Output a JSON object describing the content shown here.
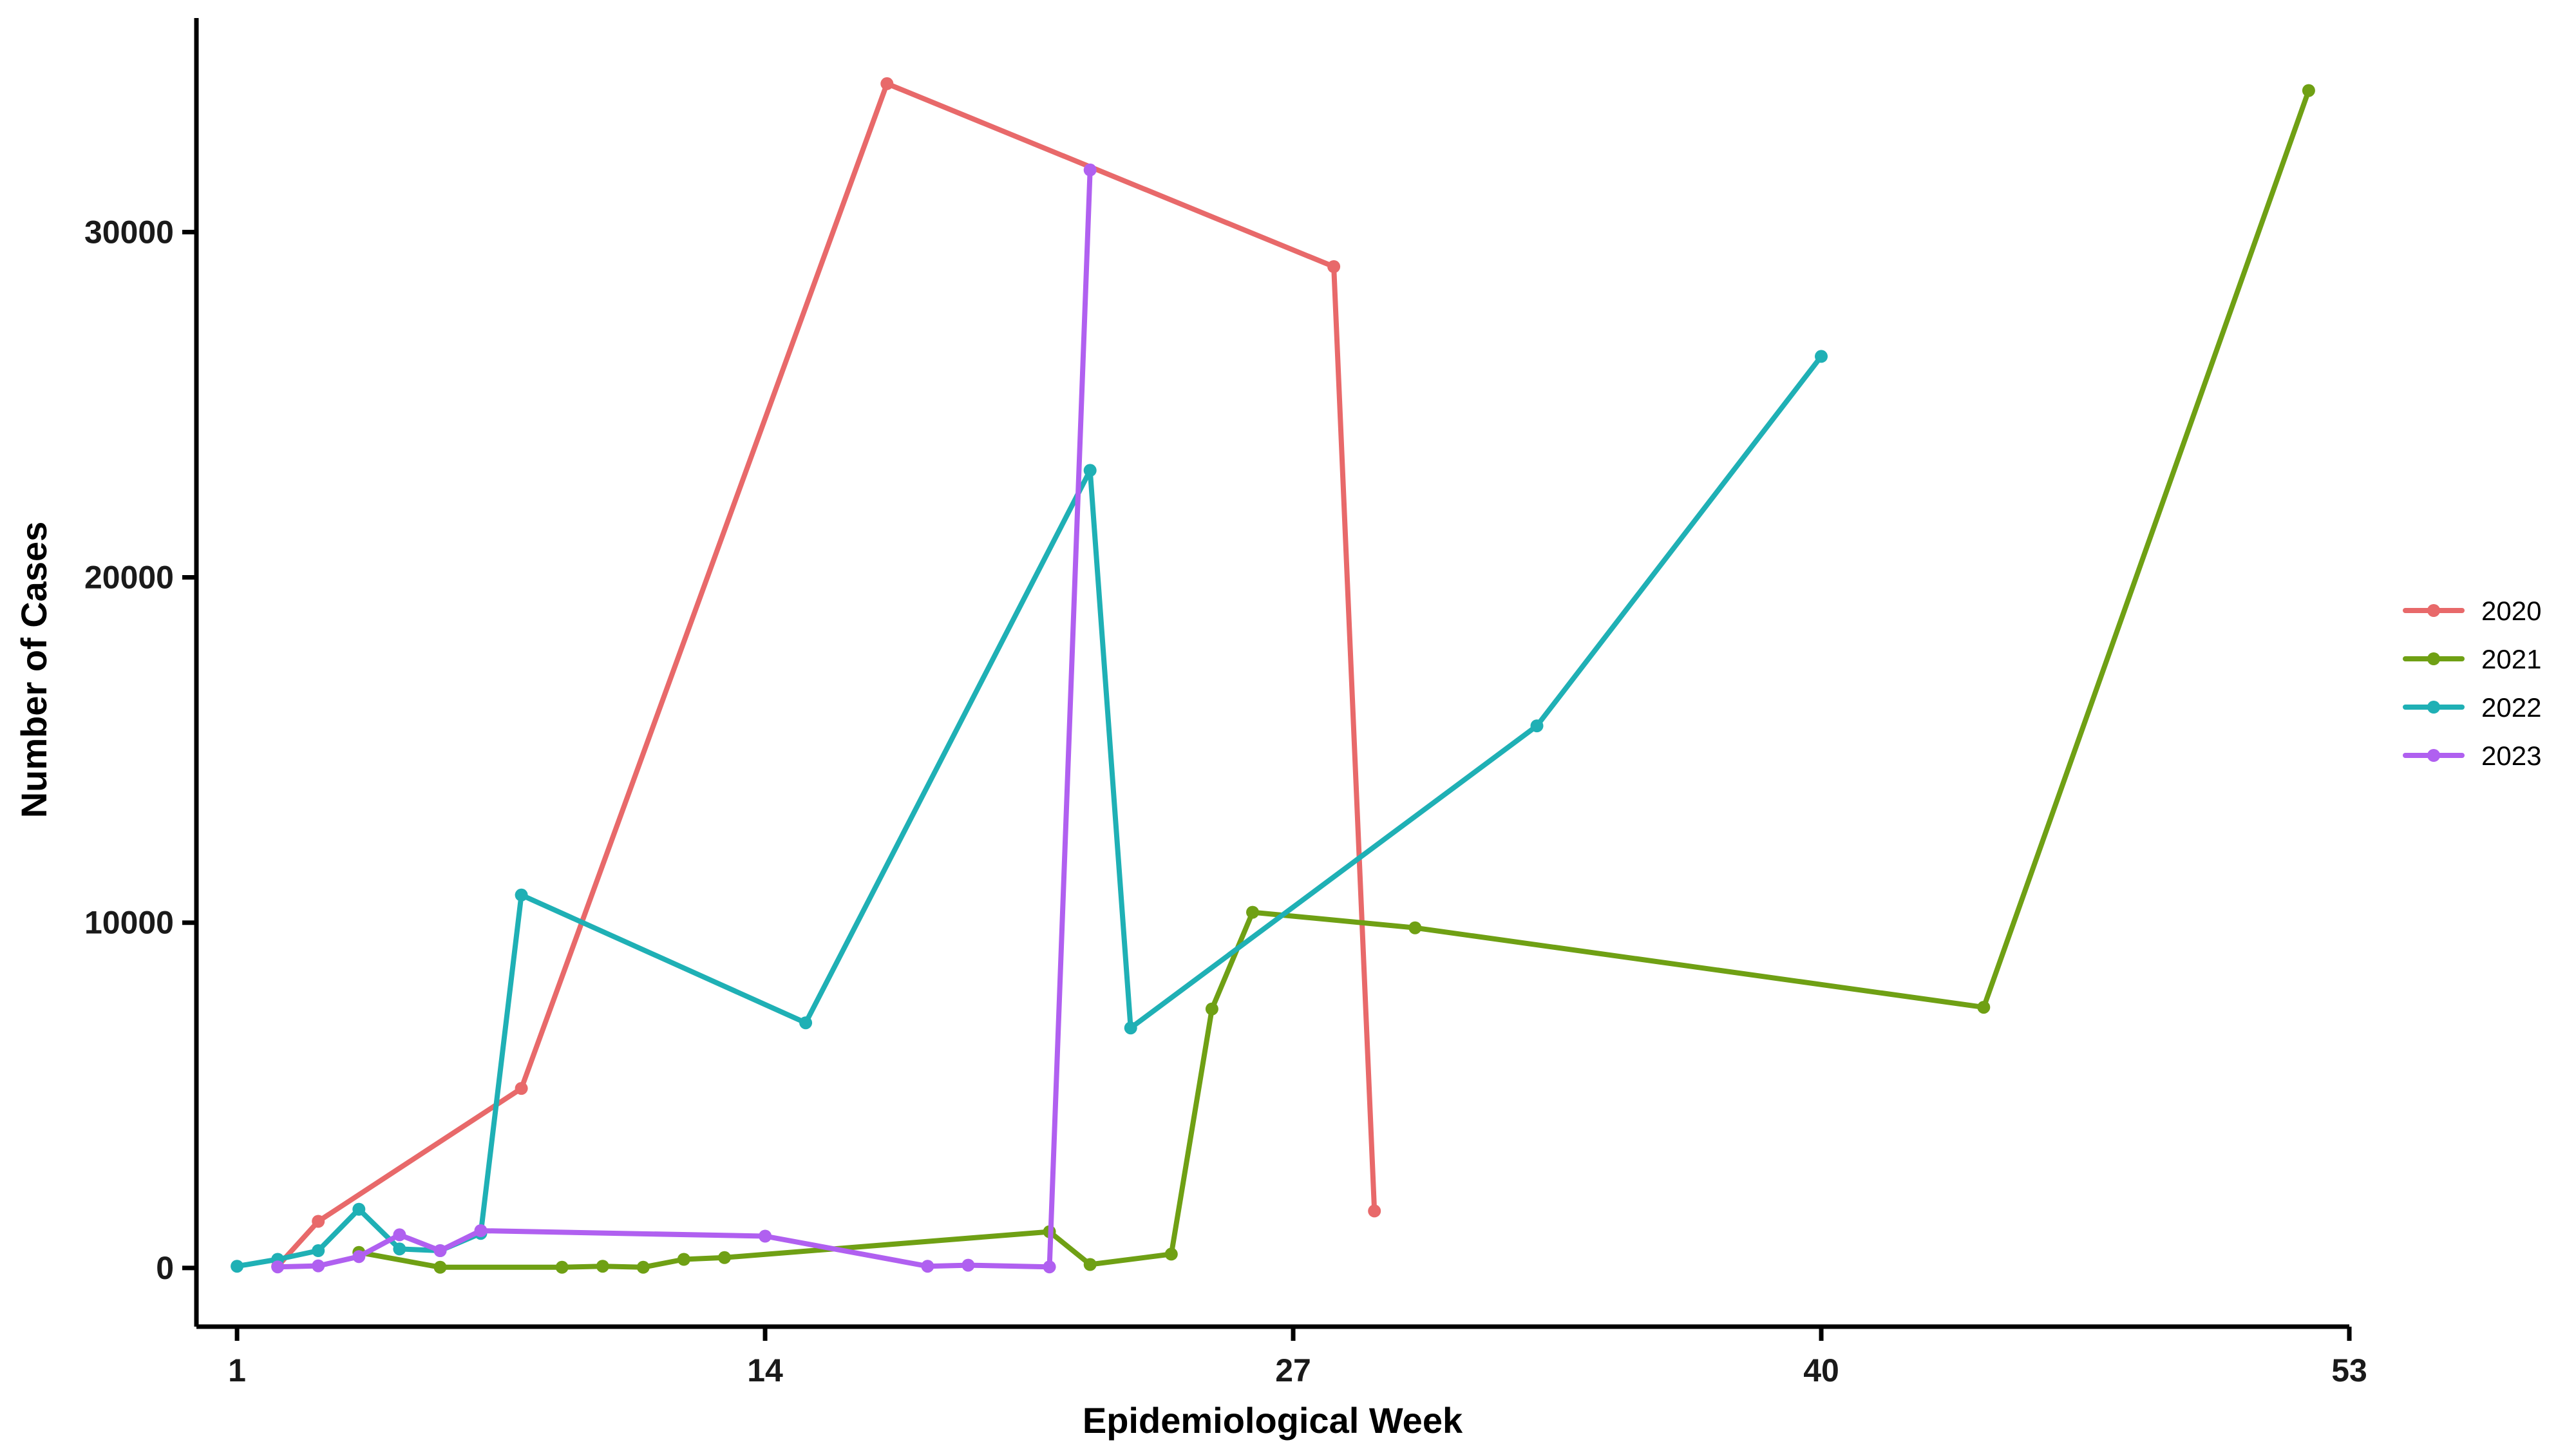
{
  "chart_data": {
    "type": "line",
    "title": "",
    "xlabel": "Epidemiological Week",
    "ylabel": "Number of Cases",
    "xlim": [
      0,
      53
    ],
    "ylim": [
      -1700,
      36200
    ],
    "xticks": [
      1,
      14,
      27,
      40,
      53
    ],
    "yticks": [
      0,
      10000,
      20000,
      30000
    ],
    "xtick_labels": [
      "1",
      "14",
      "27",
      "40",
      "53"
    ],
    "ytick_labels": [
      "0",
      "10000",
      "20000",
      "30000"
    ],
    "grid": false,
    "legend": "right",
    "series": [
      {
        "name": "2020",
        "color": "#E8696A",
        "x": [
          2,
          3,
          8,
          17,
          28,
          29
        ],
        "y": [
          50,
          1350,
          5200,
          34300,
          29000,
          1650
        ]
      },
      {
        "name": "2021",
        "color": "#6FA014",
        "x": [
          4,
          6,
          9,
          10,
          11,
          12,
          13,
          21,
          22,
          24,
          25,
          26,
          30,
          44,
          52
        ],
        "y": [
          450,
          20,
          20,
          50,
          20,
          250,
          300,
          1050,
          100,
          400,
          7500,
          10300,
          9850,
          7550,
          34100
        ]
      },
      {
        "name": "2022",
        "color": "#1FB0B5",
        "x": [
          1,
          2,
          3,
          4,
          5,
          6,
          7,
          8,
          15,
          22,
          23,
          33,
          40
        ],
        "y": [
          50,
          250,
          500,
          1700,
          550,
          500,
          1000,
          10800,
          7100,
          23100,
          6950,
          15700,
          26400
        ]
      },
      {
        "name": "2023",
        "color": "#B060F0",
        "x": [
          2,
          3,
          4,
          5,
          6,
          7,
          14,
          18,
          19,
          21,
          22
        ],
        "y": [
          30,
          60,
          330,
          960,
          500,
          1080,
          920,
          50,
          80,
          30,
          31800
        ]
      }
    ]
  }
}
